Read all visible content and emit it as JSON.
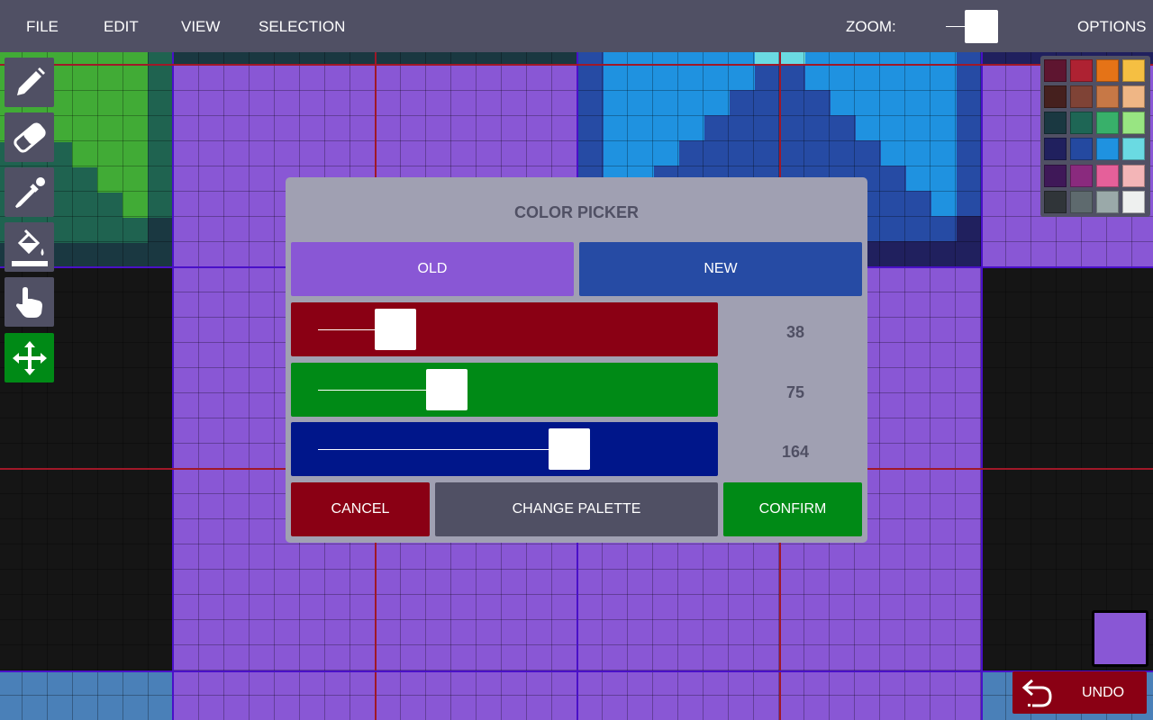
{
  "menu": {
    "file": "FILE",
    "edit": "EDIT",
    "view": "VIEW",
    "selection": "SELECTION",
    "zoom_label": "ZOOM:",
    "options": "OPTIONS"
  },
  "tools": [
    {
      "name": "pencil-icon"
    },
    {
      "name": "eraser-icon"
    },
    {
      "name": "eyedropper-icon"
    },
    {
      "name": "paint-bucket-icon"
    },
    {
      "name": "hand-icon"
    },
    {
      "name": "move-icon",
      "active": true
    }
  ],
  "palette": [
    "#5e1530",
    "#ae2232",
    "#e57317",
    "#f5bf42",
    "#45201e",
    "#7f4336",
    "#c77846",
    "#efb685",
    "#1a3841",
    "#1e6655",
    "#38b06a",
    "#98e582",
    "#20205e",
    "#2449a0",
    "#1f92e0",
    "#6adae2",
    "#3f1858",
    "#8a2a7e",
    "#e5609a",
    "#f3b5b7",
    "#303539",
    "#5e6a6e",
    "#9aa9a9",
    "#eef0ef"
  ],
  "dialog": {
    "title": "COLOR PICKER",
    "old_label": "OLD",
    "new_label": "NEW",
    "old_color": "#8957d5",
    "new_color": "#264ba4",
    "red": {
      "value": "38",
      "max": 255
    },
    "green": {
      "value": "75",
      "max": 255
    },
    "blue": {
      "value": "164",
      "max": 255
    },
    "cancel": "CANCEL",
    "change_palette": "CHANGE PALETTE",
    "confirm": "CONFIRM"
  },
  "current_color": "#8957d5",
  "undo": "UNDO"
}
